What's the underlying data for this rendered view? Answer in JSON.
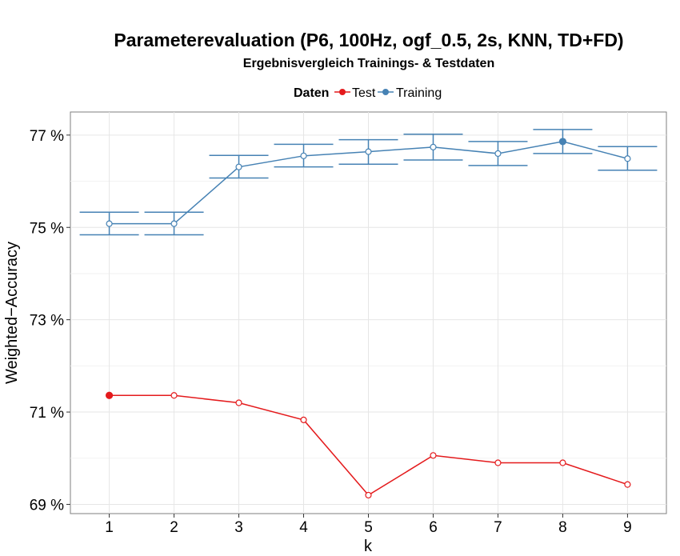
{
  "chart_data": {
    "type": "line",
    "title": "Parameterevaluation (P6, 100Hz, ogf_0.5, 2s, KNN, TD+FD)",
    "subtitle": "Ergebnisvergleich Trainings- & Testdaten",
    "xlabel": "k",
    "ylabel": "Weighted−Accuracy",
    "x": [
      1,
      2,
      3,
      4,
      5,
      6,
      7,
      8,
      9
    ],
    "x_tick_labels": [
      "1",
      "2",
      "3",
      "4",
      "5",
      "6",
      "7",
      "8",
      "9"
    ],
    "y_ticks": [
      69,
      71,
      73,
      75,
      77
    ],
    "y_tick_labels": [
      "69 %",
      "71 %",
      "73 %",
      "75 %",
      "77 %"
    ],
    "ylim": [
      68.8,
      77.5
    ],
    "grid": true,
    "legend": {
      "title": "Daten",
      "placement": "top",
      "entries": [
        "Test",
        "Training"
      ]
    },
    "series": [
      {
        "name": "Test",
        "color": "#e41a1c",
        "values": [
          71.36,
          71.36,
          71.2,
          70.83,
          69.2,
          70.06,
          69.9,
          69.9,
          69.43
        ],
        "best_index": 0
      },
      {
        "name": "Training",
        "color": "#4682b4",
        "values": [
          75.08,
          75.08,
          76.31,
          76.55,
          76.64,
          76.74,
          76.6,
          76.86,
          76.49
        ],
        "error_low": [
          74.84,
          74.84,
          76.07,
          76.31,
          76.37,
          76.46,
          76.34,
          76.6,
          76.24
        ],
        "error_high": [
          75.33,
          75.33,
          76.56,
          76.8,
          76.9,
          77.02,
          76.86,
          77.12,
          76.75
        ],
        "best_index": 7
      }
    ]
  }
}
